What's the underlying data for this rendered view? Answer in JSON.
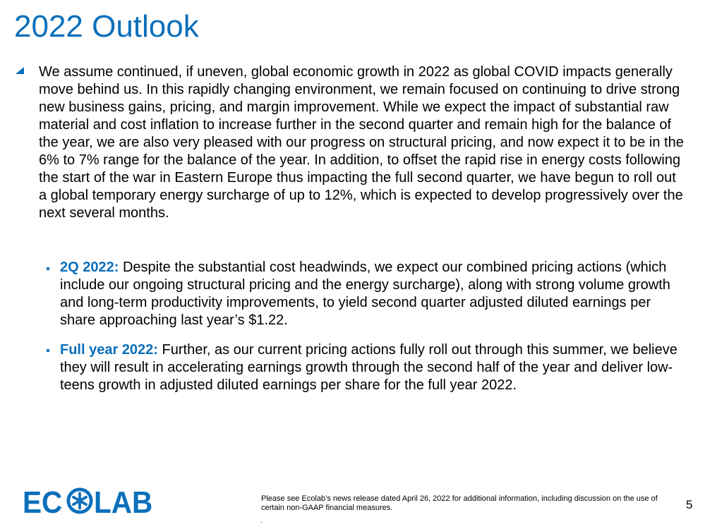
{
  "title": "2022 Outlook",
  "main_paragraph": "We assume continued, if uneven, global economic growth in 2022 as global COVID impacts generally move behind us. In this rapidly changing environment, we remain focused on continuing to drive strong new business gains, pricing, and margin improvement. While we expect the impact of substantial raw material and cost inflation to increase further in the second quarter and remain high for the balance of the year, we are also very pleased with our progress on structural pricing, and now expect it to be in the 6% to 7% range for the balance of the year. In addition, to offset the rapid rise in energy costs following the start of the war in Eastern Europe thus impacting the full second quarter, we have begun to roll out a global temporary energy surcharge of up to 12%, which is expected to develop progressively over the next several months.",
  "sub_items": [
    {
      "lead": "2Q 2022:",
      "text": " Despite the substantial cost headwinds, we expect our combined pricing actions (which include our ongoing structural pricing and the energy surcharge), along with strong volume growth and long-term productivity improvements, to yield second quarter adjusted diluted earnings per share approaching last year’s $1.22."
    },
    {
      "lead": "Full year 2022:",
      "text": " Further, as our current pricing actions fully roll out through this summer, we believe they will result in accelerating earnings growth through the second half of the year and deliver low-teens growth in adjusted diluted earnings per share for the full year 2022."
    }
  ],
  "logo": {
    "part1": "EC",
    "part2": "LAB"
  },
  "footnote": "Please see Ecolab’s news release dated April 26, 2022 for additional information, including discussion on the use of certain non-GAAP financial measures.",
  "page_number": "5",
  "colors": {
    "accent": "#0B6FBA"
  }
}
